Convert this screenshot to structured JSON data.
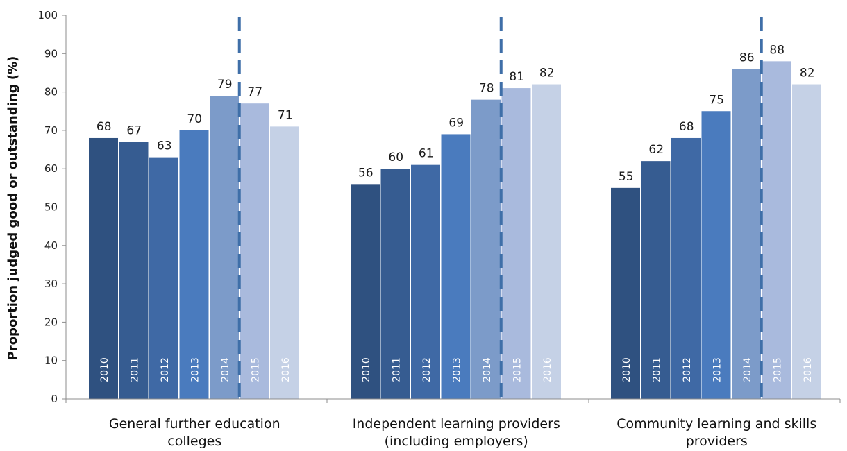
{
  "chart_data": {
    "type": "bar",
    "ylabel": "Proportion judged good or outstanding (%)",
    "ylim": [
      0,
      100
    ],
    "yticks": [
      0,
      10,
      20,
      30,
      40,
      50,
      60,
      70,
      80,
      90,
      100
    ],
    "grid": false,
    "legend": "none (year printed inside each bar)",
    "divider": "dashed vertical line between 2014 and 2015 in each group",
    "groups": [
      {
        "label_lines": [
          "General further education",
          "colleges"
        ],
        "bars": [
          {
            "year": "2010",
            "value": 68,
            "color": "#2F5180"
          },
          {
            "year": "2011",
            "value": 67,
            "color": "#365C91"
          },
          {
            "year": "2012",
            "value": 63,
            "color": "#3F69A5"
          },
          {
            "year": "2013",
            "value": 70,
            "color": "#4A7BBE"
          },
          {
            "year": "2014",
            "value": 79,
            "color": "#7C9BC9"
          },
          {
            "year": "2015",
            "value": 77,
            "color": "#A9BADD"
          },
          {
            "year": "2016",
            "value": 71,
            "color": "#C5D1E6"
          }
        ]
      },
      {
        "label_lines": [
          "Independent learning providers",
          "(including employers)"
        ],
        "bars": [
          {
            "year": "2010",
            "value": 56,
            "color": "#2F5180"
          },
          {
            "year": "2011",
            "value": 60,
            "color": "#365C91"
          },
          {
            "year": "2012",
            "value": 61,
            "color": "#3F69A5"
          },
          {
            "year": "2013",
            "value": 69,
            "color": "#4A7BBE"
          },
          {
            "year": "2014",
            "value": 78,
            "color": "#7C9BC9"
          },
          {
            "year": "2015",
            "value": 81,
            "color": "#A9BADD"
          },
          {
            "year": "2016",
            "value": 82,
            "color": "#C5D1E6"
          }
        ]
      },
      {
        "label_lines": [
          "Community learning and skills",
          "providers"
        ],
        "bars": [
          {
            "year": "2010",
            "value": 55,
            "color": "#2F5180"
          },
          {
            "year": "2011",
            "value": 62,
            "color": "#365C91"
          },
          {
            "year": "2012",
            "value": 68,
            "color": "#3F69A5"
          },
          {
            "year": "2013",
            "value": 75,
            "color": "#4A7BBE"
          },
          {
            "year": "2014",
            "value": 86,
            "color": "#7C9BC9"
          },
          {
            "year": "2015",
            "value": 88,
            "color": "#A9BADD"
          },
          {
            "year": "2016",
            "value": 82,
            "color": "#C5D1E6"
          }
        ]
      }
    ],
    "divider_color": "#3F6FA8"
  }
}
